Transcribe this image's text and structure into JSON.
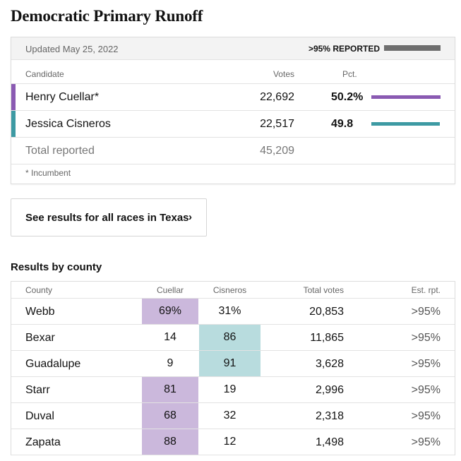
{
  "title": "Democratic Primary Runoff",
  "results": {
    "updated": "Updated May 25, 2022",
    "reported": ">95% REPORTED",
    "reported_color": "#6f6f6f",
    "columns": {
      "candidate": "Candidate",
      "votes": "Votes",
      "pct": "Pct."
    },
    "candidates": [
      {
        "name": "Henry Cuellar*",
        "votes": "22,692",
        "pct": "50.2%",
        "pct_value": 50.2,
        "color": "#8a5ab2"
      },
      {
        "name": "Jessica Cisneros",
        "votes": "22,517",
        "pct": "49.8",
        "pct_value": 49.8,
        "color": "#3d9aa3"
      }
    ],
    "total": {
      "label": "Total reported",
      "votes": "45,209"
    },
    "footnote": "* Incumbent"
  },
  "see_results": {
    "label": "See results for all races in Texas",
    "chevron": "›"
  },
  "county": {
    "title": "Results by county",
    "columns": {
      "county": "County",
      "cuellar": "Cuellar",
      "cisneros": "Cisneros",
      "total": "Total votes",
      "est": "Est. rpt."
    },
    "winner_colors": {
      "cuellar": "#cbb8dc",
      "cisneros": "#b8dcde"
    },
    "rows": [
      {
        "county": "Webb",
        "cuellar": "69%",
        "cisneros": "31%",
        "total": "20,853",
        "est": ">95%",
        "winner": "cuellar"
      },
      {
        "county": "Bexar",
        "cuellar": "14",
        "cisneros": "86",
        "total": "11,865",
        "est": ">95%",
        "winner": "cisneros"
      },
      {
        "county": "Guadalupe",
        "cuellar": "9",
        "cisneros": "91",
        "total": "3,628",
        "est": ">95%",
        "winner": "cisneros"
      },
      {
        "county": "Starr",
        "cuellar": "81",
        "cisneros": "19",
        "total": "2,996",
        "est": ">95%",
        "winner": "cuellar"
      },
      {
        "county": "Duval",
        "cuellar": "68",
        "cisneros": "32",
        "total": "2,318",
        "est": ">95%",
        "winner": "cuellar"
      },
      {
        "county": "Zapata",
        "cuellar": "88",
        "cisneros": "12",
        "total": "1,498",
        "est": ">95%",
        "winner": "cuellar"
      }
    ]
  }
}
